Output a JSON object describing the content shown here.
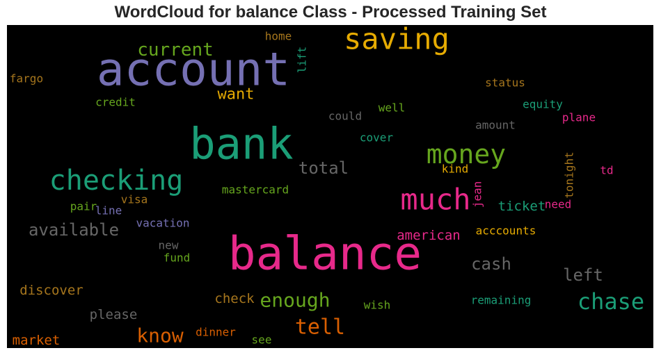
{
  "chart_data": {
    "type": "wordcloud",
    "title": "WordCloud for balance Class - Processed Training Set",
    "background": "#000000",
    "words": [
      {
        "text": "account",
        "color": "#7570b3",
        "size": 66,
        "rotate": false
      },
      {
        "text": "balance",
        "color": "#e7298a",
        "size": 66,
        "rotate": false
      },
      {
        "text": "bank",
        "color": "#1b9e77",
        "size": 62,
        "rotate": false
      },
      {
        "text": "saving",
        "color": "#e6ab02",
        "size": 42,
        "rotate": false
      },
      {
        "text": "much",
        "color": "#e7298a",
        "size": 42,
        "rotate": false
      },
      {
        "text": "checking",
        "color": "#1b9e77",
        "size": 40,
        "rotate": false
      },
      {
        "text": "money",
        "color": "#66a61e",
        "size": 38,
        "rotate": false
      },
      {
        "text": "chase",
        "color": "#1b9e77",
        "size": 32,
        "rotate": false
      },
      {
        "text": "tell",
        "color": "#d95f02",
        "size": 30,
        "rotate": false
      },
      {
        "text": "enough",
        "color": "#66a61e",
        "size": 28,
        "rotate": false
      },
      {
        "text": "know",
        "color": "#d95f02",
        "size": 28,
        "rotate": false
      },
      {
        "text": "current",
        "color": "#66a61e",
        "size": 26,
        "rotate": false
      },
      {
        "text": "available",
        "color": "#666666",
        "size": 24,
        "rotate": false
      },
      {
        "text": "total",
        "color": "#666666",
        "size": 24,
        "rotate": false
      },
      {
        "text": "cash",
        "color": "#666666",
        "size": 24,
        "rotate": false
      },
      {
        "text": "left",
        "color": "#666666",
        "size": 24,
        "rotate": false
      },
      {
        "text": "want",
        "color": "#e6ab02",
        "size": 22,
        "rotate": false
      },
      {
        "text": "discover",
        "color": "#a6761d",
        "size": 19,
        "rotate": false
      },
      {
        "text": "american",
        "color": "#e7298a",
        "size": 19,
        "rotate": false
      },
      {
        "text": "please",
        "color": "#666666",
        "size": 19,
        "rotate": false
      },
      {
        "text": "check",
        "color": "#a6761d",
        "size": 19,
        "rotate": false
      },
      {
        "text": "ticket",
        "color": "#1b9e77",
        "size": 19,
        "rotate": false
      },
      {
        "text": "market",
        "color": "#d95f02",
        "size": 19,
        "rotate": false
      },
      {
        "text": "fargo",
        "color": "#a6761d",
        "size": 16,
        "rotate": false
      },
      {
        "text": "home",
        "color": "#a6761d",
        "size": 16,
        "rotate": false
      },
      {
        "text": "lift",
        "color": "#1b9e77",
        "size": 16,
        "rotate": true
      },
      {
        "text": "credit",
        "color": "#66a61e",
        "size": 16,
        "rotate": false
      },
      {
        "text": "could",
        "color": "#666666",
        "size": 16,
        "rotate": false
      },
      {
        "text": "well",
        "color": "#66a61e",
        "size": 16,
        "rotate": false
      },
      {
        "text": "status",
        "color": "#a6761d",
        "size": 16,
        "rotate": false
      },
      {
        "text": "equity",
        "color": "#1b9e77",
        "size": 16,
        "rotate": false
      },
      {
        "text": "plane",
        "color": "#e7298a",
        "size": 16,
        "rotate": false
      },
      {
        "text": "amount",
        "color": "#666666",
        "size": 16,
        "rotate": false
      },
      {
        "text": "cover",
        "color": "#1b9e77",
        "size": 16,
        "rotate": false
      },
      {
        "text": "tonight",
        "color": "#a6761d",
        "size": 16,
        "rotate": true
      },
      {
        "text": "kind",
        "color": "#e6ab02",
        "size": 16,
        "rotate": false
      },
      {
        "text": "td",
        "color": "#e7298a",
        "size": 16,
        "rotate": false
      },
      {
        "text": "mastercard",
        "color": "#66a61e",
        "size": 16,
        "rotate": false
      },
      {
        "text": "jean",
        "color": "#e7298a",
        "size": 16,
        "rotate": true
      },
      {
        "text": "need",
        "color": "#e7298a",
        "size": 16,
        "rotate": false
      },
      {
        "text": "visa",
        "color": "#a6761d",
        "size": 16,
        "rotate": false
      },
      {
        "text": "pair",
        "color": "#66a61e",
        "size": 16,
        "rotate": false
      },
      {
        "text": "line",
        "color": "#7570b3",
        "size": 16,
        "rotate": false
      },
      {
        "text": "vacation",
        "color": "#7570b3",
        "size": 16,
        "rotate": false
      },
      {
        "text": "acccounts",
        "color": "#e6ab02",
        "size": 16,
        "rotate": false
      },
      {
        "text": "new",
        "color": "#666666",
        "size": 16,
        "rotate": false
      },
      {
        "text": "fund",
        "color": "#66a61e",
        "size": 16,
        "rotate": false
      },
      {
        "text": "remaining",
        "color": "#1b9e77",
        "size": 16,
        "rotate": false
      },
      {
        "text": "wish",
        "color": "#66a61e",
        "size": 16,
        "rotate": false
      },
      {
        "text": "dinner",
        "color": "#d95f02",
        "size": 16,
        "rotate": false
      },
      {
        "text": "see",
        "color": "#66a61e",
        "size": 16,
        "rotate": false
      }
    ]
  }
}
